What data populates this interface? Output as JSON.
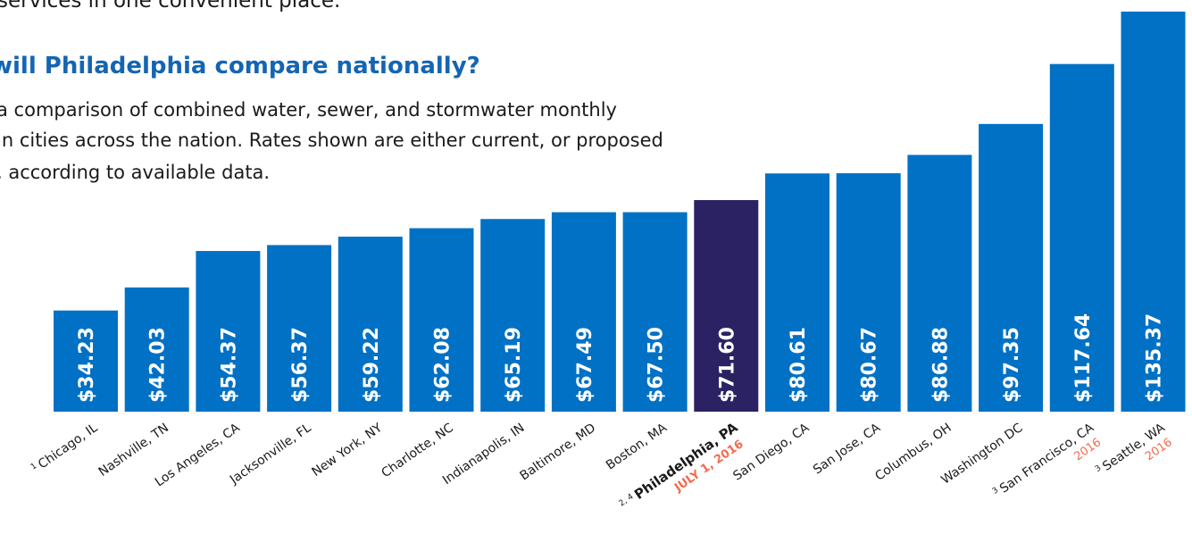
{
  "intro": {
    "top_line": "services in one convenient place.",
    "heading": "will Philadelphia compare nationally?",
    "line1": "a comparison of combined water, sewer, and stormwater monthly",
    "line2": "in cities across the nation. Rates shown are either current, or proposed",
    "line3": ", according to available data."
  },
  "colors": {
    "bar": "#0071c5",
    "highlight_bar": "#2a2262",
    "note": "#f26a4f",
    "heading": "#1465b3"
  },
  "chart_data": {
    "type": "bar",
    "title": "",
    "xlabel": "",
    "ylabel": "",
    "ylim": [
      0,
      140
    ],
    "highlight_index": 9,
    "bars": [
      {
        "prefix": "1",
        "label": "Chicago, IL",
        "value": 34.23,
        "value_label": "$34.23",
        "note": ""
      },
      {
        "prefix": "",
        "label": "Nashville, TN",
        "value": 42.03,
        "value_label": "$42.03",
        "note": ""
      },
      {
        "prefix": "",
        "label": "Los Angeles, CA",
        "value": 54.37,
        "value_label": "$54.37",
        "note": ""
      },
      {
        "prefix": "",
        "label": "Jacksonville, FL",
        "value": 56.37,
        "value_label": "$56.37",
        "note": ""
      },
      {
        "prefix": "",
        "label": "New York, NY",
        "value": 59.22,
        "value_label": "$59.22",
        "note": ""
      },
      {
        "prefix": "",
        "label": "Charlotte, NC",
        "value": 62.08,
        "value_label": "$62.08",
        "note": ""
      },
      {
        "prefix": "",
        "label": "Indianapolis, IN",
        "value": 65.19,
        "value_label": "$65.19",
        "note": ""
      },
      {
        "prefix": "",
        "label": "Baltimore, MD",
        "value": 67.49,
        "value_label": "$67.49",
        "note": ""
      },
      {
        "prefix": "",
        "label": "Boston, MA",
        "value": 67.5,
        "value_label": "$67.50",
        "note": ""
      },
      {
        "prefix": "2, 4",
        "label": "Philadelphia, PA",
        "value": 71.6,
        "value_label": "$71.60",
        "note": "JULY 1, 2016"
      },
      {
        "prefix": "",
        "label": "San Diego, CA",
        "value": 80.61,
        "value_label": "$80.61",
        "note": ""
      },
      {
        "prefix": "",
        "label": "San Jose, CA",
        "value": 80.67,
        "value_label": "$80.67",
        "note": ""
      },
      {
        "prefix": "",
        "label": "Columbus, OH",
        "value": 86.88,
        "value_label": "$86.88",
        "note": ""
      },
      {
        "prefix": "",
        "label": "Washington DC",
        "value": 97.35,
        "value_label": "$97.35",
        "note": ""
      },
      {
        "prefix": "3",
        "label": "San Francisco, CA",
        "value": 117.64,
        "value_label": "$117.64",
        "note": "2016"
      },
      {
        "prefix": "3",
        "label": "Seattle, WA",
        "value": 135.37,
        "value_label": "$135.37",
        "note": "2016"
      }
    ]
  }
}
